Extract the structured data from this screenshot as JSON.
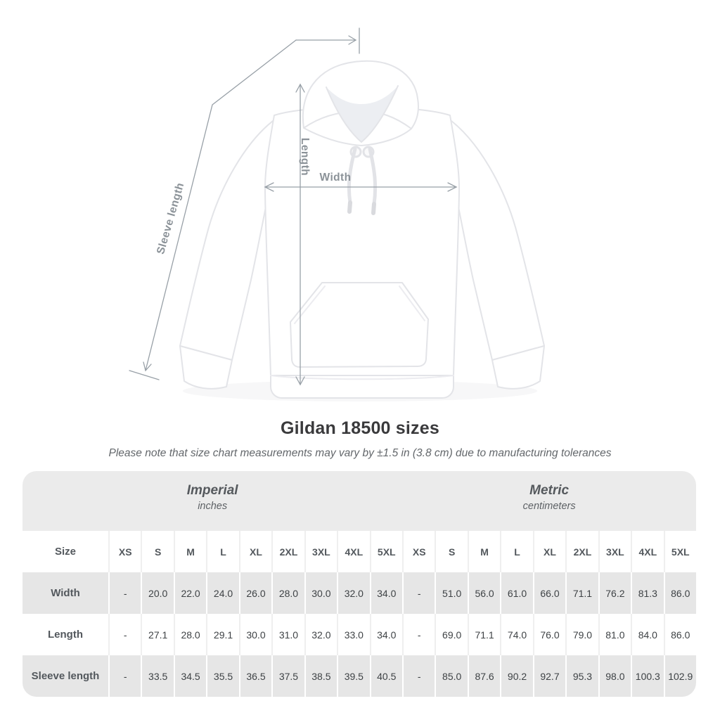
{
  "page": {
    "background": "#ffffff"
  },
  "title": "Gildan 18500 sizes",
  "subtitle": "Please note that size chart measurements may vary by ±1.5 in (3.8 cm) due to manufacturing tolerances",
  "diagram": {
    "labels": {
      "length": "Length",
      "width": "Width",
      "sleeve_length": "Sleeve length"
    },
    "line_color": "#98a0a7",
    "label_color": "#8b9298",
    "garment": "white pullover hoodie, flat lay front view"
  },
  "table": {
    "size_header": "Size",
    "groups": [
      {
        "label": "Imperial",
        "sublabel": "inches"
      },
      {
        "label": "Metric",
        "sublabel": "centimeters"
      }
    ],
    "sizes": [
      "XS",
      "S",
      "M",
      "L",
      "XL",
      "2XL",
      "3XL",
      "4XL",
      "5XL"
    ],
    "rows": [
      {
        "label": "Width",
        "imperial": [
          "-",
          "20.0",
          "22.0",
          "24.0",
          "26.0",
          "28.0",
          "30.0",
          "32.0",
          "34.0"
        ],
        "metric": [
          "-",
          "51.0",
          "56.0",
          "61.0",
          "66.0",
          "71.1",
          "76.2",
          "81.3",
          "86.0"
        ]
      },
      {
        "label": "Length",
        "imperial": [
          "-",
          "27.1",
          "28.0",
          "29.1",
          "30.0",
          "31.0",
          "32.0",
          "33.0",
          "34.0"
        ],
        "metric": [
          "-",
          "69.0",
          "71.1",
          "74.0",
          "76.0",
          "79.0",
          "81.0",
          "84.0",
          "86.0"
        ]
      },
      {
        "label": "Sleeve length",
        "imperial": [
          "-",
          "33.5",
          "34.5",
          "35.5",
          "36.5",
          "37.5",
          "38.5",
          "39.5",
          "40.5"
        ],
        "metric": [
          "-",
          "85.0",
          "87.6",
          "90.2",
          "92.7",
          "95.3",
          "98.0",
          "100.3",
          "102.9"
        ]
      }
    ],
    "colors": {
      "band": "#ebebeb",
      "gray_row": "#e6e6e6",
      "separator_on_white": "#efefef",
      "separator_on_gray": "#ffffff"
    }
  },
  "chart_data": {
    "type": "table",
    "title": "Gildan 18500 sizes",
    "note": "Size chart measurements may vary by ±1.5 in (3.8 cm) due to manufacturing tolerances",
    "column_groups": [
      {
        "label": "Imperial",
        "unit": "inches"
      },
      {
        "label": "Metric",
        "unit": "centimeters"
      }
    ],
    "sizes": [
      "XS",
      "S",
      "M",
      "L",
      "XL",
      "2XL",
      "3XL",
      "4XL",
      "5XL"
    ],
    "rows": [
      {
        "measurement": "Width",
        "imperial_in": [
          null,
          20.0,
          22.0,
          24.0,
          26.0,
          28.0,
          30.0,
          32.0,
          34.0
        ],
        "metric_cm": [
          null,
          51.0,
          56.0,
          61.0,
          66.0,
          71.1,
          76.2,
          81.3,
          86.0
        ]
      },
      {
        "measurement": "Length",
        "imperial_in": [
          null,
          27.1,
          28.0,
          29.1,
          30.0,
          31.0,
          32.0,
          33.0,
          34.0
        ],
        "metric_cm": [
          null,
          69.0,
          71.1,
          74.0,
          76.0,
          79.0,
          81.0,
          84.0,
          86.0
        ]
      },
      {
        "measurement": "Sleeve length",
        "imperial_in": [
          null,
          33.5,
          34.5,
          35.5,
          36.5,
          37.5,
          38.5,
          39.5,
          40.5
        ],
        "metric_cm": [
          null,
          85.0,
          87.6,
          90.2,
          92.7,
          95.3,
          98.0,
          100.3,
          102.9
        ]
      }
    ]
  }
}
